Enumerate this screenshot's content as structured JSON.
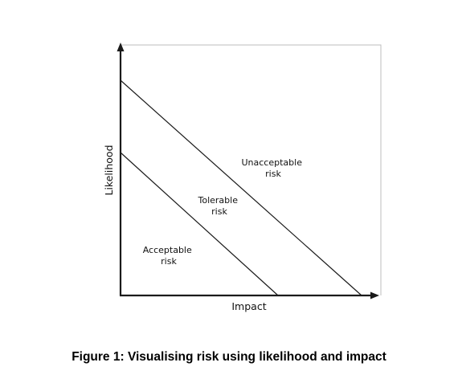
{
  "diagram": {
    "y_axis_label": "Likelihood",
    "x_axis_label": "Impact",
    "regions": [
      {
        "id": "unacceptable",
        "lines": [
          "Unacceptable",
          "risk"
        ]
      },
      {
        "id": "tolerable",
        "lines": [
          "Tolerable",
          "risk"
        ]
      },
      {
        "id": "acceptable",
        "lines": [
          "Acceptable",
          "risk"
        ]
      }
    ],
    "colors": {
      "line": "#1a1a1a",
      "frame": "#bdbdbd",
      "text": "#111111"
    }
  },
  "caption": "Figure 1: Visualising risk using likelihood and impact"
}
